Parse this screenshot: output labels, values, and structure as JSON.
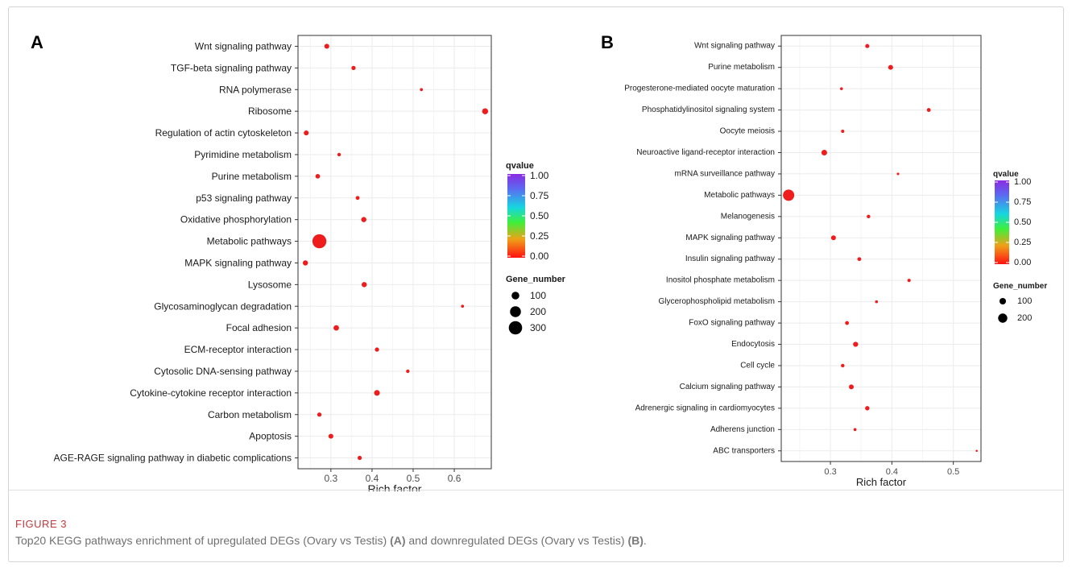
{
  "chart_data": [
    {
      "type": "scatter",
      "panel_label": "A",
      "xlabel": "Rich factor",
      "xlim": [
        0.22,
        0.69
      ],
      "xticks": [
        0.3,
        0.4,
        0.5,
        0.6
      ],
      "categories": [
        "Wnt signaling pathway",
        "TGF-beta signaling pathway",
        "RNA polymerase",
        "Ribosome",
        "Regulation of actin cytoskeleton",
        "Pyrimidine metabolism",
        "Purine metabolism",
        "p53 signaling pathway",
        "Oxidative phosphorylation",
        "Metabolic pathways",
        "MAPK signaling pathway",
        "Lysosome",
        "Glycosaminoglycan degradation",
        "Focal adhesion",
        "ECM-receptor interaction",
        "Cytosolic DNA-sensing pathway",
        "Cytokine-cytokine receptor interaction",
        "Carbon metabolism",
        "Apoptosis",
        "AGE-RAGE signaling pathway in diabetic complications"
      ],
      "rich_factor": [
        0.29,
        0.355,
        0.52,
        0.675,
        0.24,
        0.32,
        0.268,
        0.365,
        0.38,
        0.272,
        0.238,
        0.381,
        0.62,
        0.313,
        0.412,
        0.487,
        0.412,
        0.272,
        0.3,
        0.37
      ],
      "gene_number": [
        40,
        30,
        15,
        60,
        40,
        20,
        35,
        25,
        45,
        330,
        45,
        45,
        15,
        50,
        30,
        20,
        55,
        30,
        40,
        30
      ],
      "qvalue": [
        0,
        0,
        0,
        0,
        0,
        0,
        0,
        0,
        0,
        0,
        0,
        0,
        0,
        0,
        0,
        0,
        0,
        0,
        0,
        0
      ],
      "color_legend": {
        "title": "qvalue",
        "ticks": [
          "1.00",
          "0.75",
          "0.50",
          "0.25",
          "0.00"
        ]
      },
      "size_legend": {
        "title": "Gene_number",
        "values": [
          100,
          200,
          300
        ],
        "labels": [
          "100",
          "200",
          "300"
        ]
      },
      "grid": true
    },
    {
      "type": "scatter",
      "panel_label": "B",
      "xlabel": "Rich factor",
      "xlim": [
        0.22,
        0.545
      ],
      "xticks": [
        0.3,
        0.4,
        0.5
      ],
      "categories": [
        "Wnt signaling pathway",
        "Purine metabolism",
        "Progesterone-mediated oocyte maturation",
        "Phosphatidylinositol signaling system",
        "Oocyte meiosis",
        "Neuroactive ligand-receptor interaction",
        "mRNA surveillance pathway",
        "Metabolic pathways",
        "Melanogenesis",
        "MAPK signaling pathway",
        "Insulin signaling pathway",
        "Inositol phosphate metabolism",
        "Glycerophospholipid metabolism",
        "FoxO signaling pathway",
        "Endocytosis",
        "Cell cycle",
        "Calcium signaling pathway",
        "Adrenergic signaling in cardiomyocytes",
        "Adherens junction",
        "ABC transporters"
      ],
      "rich_factor": [
        0.36,
        0.398,
        0.318,
        0.46,
        0.32,
        0.29,
        0.41,
        0.232,
        0.362,
        0.305,
        0.347,
        0.428,
        0.375,
        0.327,
        0.341,
        0.32,
        0.334,
        0.36,
        0.34,
        0.538
      ],
      "gene_number": [
        40,
        55,
        20,
        35,
        25,
        75,
        15,
        300,
        30,
        55,
        35,
        25,
        20,
        35,
        60,
        30,
        55,
        45,
        20,
        10
      ],
      "qvalue": [
        0,
        0,
        0,
        0,
        0,
        0,
        0,
        0,
        0,
        0,
        0,
        0,
        0,
        0,
        0,
        0,
        0,
        0,
        0,
        0
      ],
      "color_legend": {
        "title": "qvalue",
        "ticks": [
          "1.00",
          "0.75",
          "0.50",
          "0.25",
          "0.00"
        ]
      },
      "size_legend": {
        "title": "Gene_number",
        "values": [
          100,
          200
        ],
        "labels": [
          "100",
          "200"
        ]
      },
      "grid": true
    }
  ],
  "caption": {
    "title": "FIGURE 3",
    "text_before": "Top20 KEGG pathways enrichment of upregulated DEGs (Ovary vs Testis) ",
    "label_a": "(A)",
    "text_middle": " and downregulated DEGs (Ovary vs Testis) ",
    "label_b": "(B)",
    "text_after": "."
  },
  "colors": {
    "point": "#ee1c1c",
    "grid_major": "#ebebeb",
    "grid_minor": "#f5f5f5",
    "panel_border": "#333333",
    "caption_title": "#c0383b",
    "caption_text": "#707070"
  }
}
